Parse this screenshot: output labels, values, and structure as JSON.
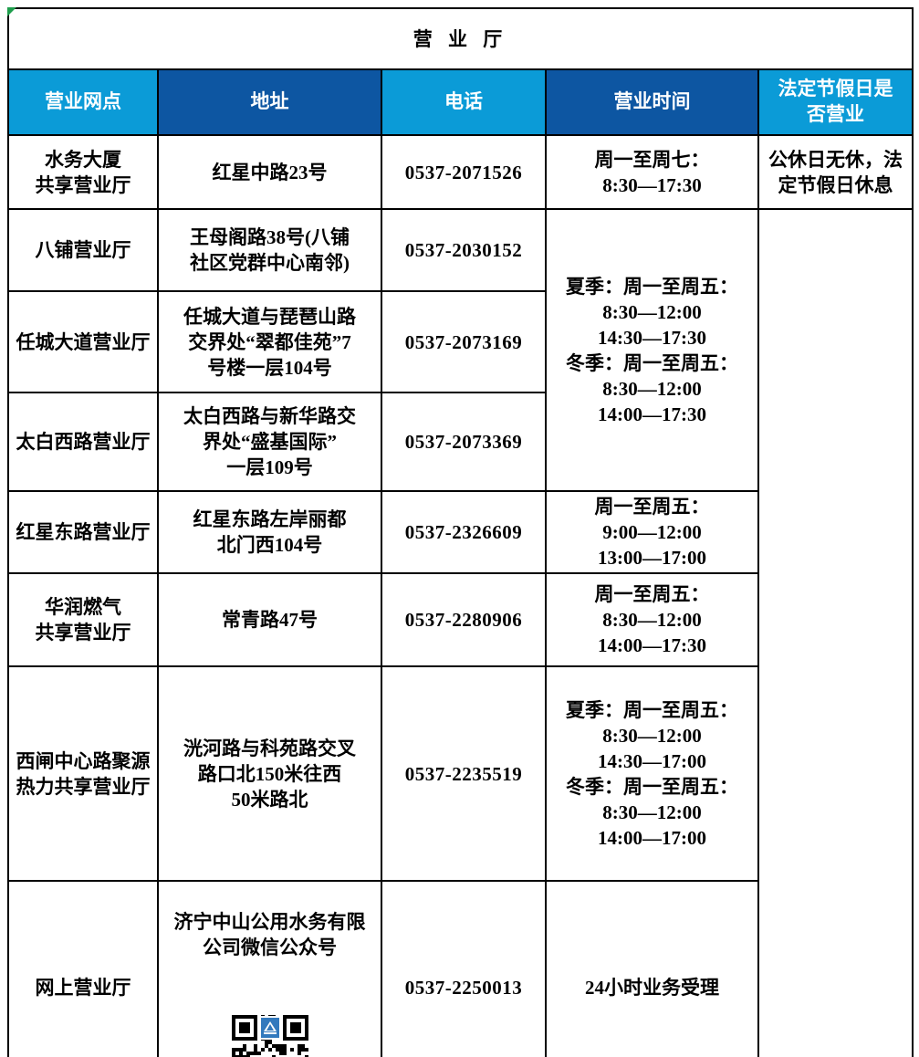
{
  "page": {
    "title": "营 业 厅"
  },
  "table": {
    "headers": {
      "branch": "营业网点",
      "address": "地址",
      "phone": "电话",
      "hours": "营业时间",
      "holiday": "法定节假日是\n否营业"
    },
    "rows": [
      {
        "name": "水务大厦\n共享营业厅",
        "address": "红星中路23号",
        "phone": "0537-2071526",
        "hours": "周一至周七：\n8:30—17:30",
        "holiday": "公休日无休，法\n定节假日休息"
      },
      {
        "name": "八铺营业厅",
        "address": "王母阁路38号(八铺\n社区党群中心南邻)",
        "phone": "0537-2030152"
      },
      {
        "name": "任城大道营业厅",
        "address": "任城大道与琵琶山路\n交界处“翠都佳苑”7\n号楼一层104号",
        "phone": "0537-2073169"
      },
      {
        "name": "太白西路营业厅",
        "address": "太白西路与新华路交\n界处“盛基国际”\n一层109号",
        "phone": "0537-2073369"
      },
      {
        "name": "红星东路营业厅",
        "address": "红星东路左岸丽都\n北门西104号",
        "phone": "0537-2326609",
        "hours": "周一至周五：\n9:00—12:00\n13:00—17:00"
      },
      {
        "name": "华润燃气\n共享营业厅",
        "address": "常青路47号",
        "phone": "0537-2280906",
        "hours": "周一至周五：\n8:30—12:00\n14:00—17:30"
      },
      {
        "name": "西闸中心路聚源\n热力共享营业厅",
        "address": "洸河路与科苑路交叉\n路口北150米往西\n50米路北",
        "phone": "0537-2235519",
        "hours": "夏季：周一至周五：\n8:30—12:00\n14:30—17:00\n冬季：周一至周五：\n8:30—12:00\n14:00—17:00"
      },
      {
        "name": "网上营业厅",
        "address": "济宁中山公用水务有限\n公司微信公众号",
        "phone": "0537-2250013",
        "hours": "24小时业务受理"
      }
    ],
    "merged": {
      "hours_rows_2_4": "夏季：周一至周五：\n8:30—12:00\n14:30—17:30\n冬季：周一至周五：\n8:30—12:00\n14:00—17:30",
      "holiday_rows_2_8": ""
    }
  },
  "icons": {
    "qr_code": "wechat-qr-code",
    "corner_marker": "excel-green-corner-marker"
  },
  "colors": {
    "header_light_blue": "#0b9bd7",
    "header_dark_blue": "#0d56a2",
    "row_light_blue": "#d9eaf6",
    "border_black": "#000000",
    "qr_logo_blue": "#3279bd",
    "marker_green": "#1f9e4d"
  }
}
